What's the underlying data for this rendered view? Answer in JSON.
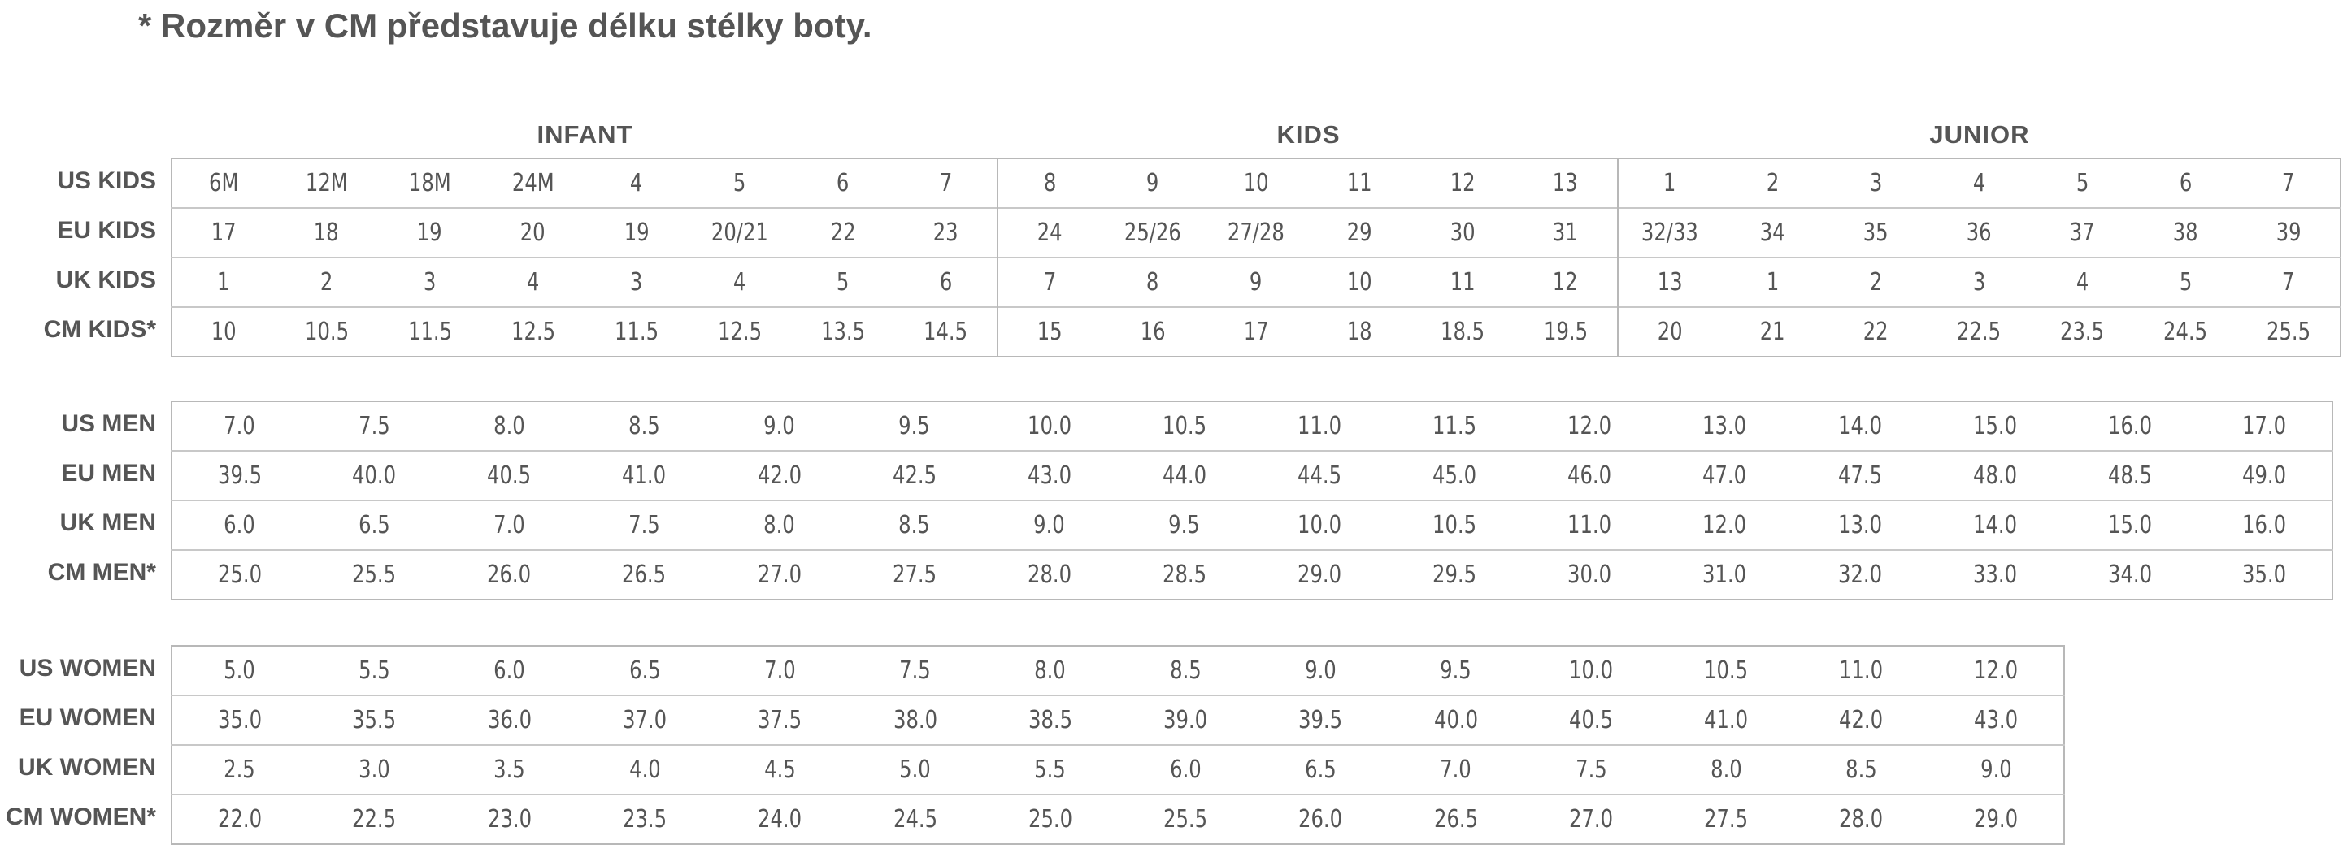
{
  "note": "* Rozměr v CM představuje délku stélky boty.",
  "kids": {
    "groups": [
      "INFANT",
      "KIDS",
      "JUNIOR"
    ],
    "rows": [
      {
        "label": "US KIDS",
        "values": [
          "6M",
          "12M",
          "18M",
          "24M",
          "4",
          "5",
          "6",
          "7",
          "8",
          "9",
          "10",
          "11",
          "12",
          "13",
          "1",
          "2",
          "3",
          "4",
          "5",
          "6",
          "7"
        ]
      },
      {
        "label": "EU KIDS",
        "values": [
          "17",
          "18",
          "19",
          "20",
          "19",
          "20/21",
          "22",
          "23",
          "24",
          "25/26",
          "27/28",
          "29",
          "30",
          "31",
          "32/33",
          "34",
          "35",
          "36",
          "37",
          "38",
          "39"
        ]
      },
      {
        "label": "UK KIDS",
        "values": [
          "1",
          "2",
          "3",
          "4",
          "3",
          "4",
          "5",
          "6",
          "7",
          "8",
          "9",
          "10",
          "11",
          "12",
          "13",
          "1",
          "2",
          "3",
          "4",
          "5",
          "7"
        ]
      },
      {
        "label": "CM KIDS*",
        "values": [
          "10",
          "10.5",
          "11.5",
          "12.5",
          "11.5",
          "12.5",
          "13.5",
          "14.5",
          "15",
          "16",
          "17",
          "18",
          "18.5",
          "19.5",
          "20",
          "21",
          "22",
          "22.5",
          "23.5",
          "24.5",
          "25.5"
        ]
      }
    ]
  },
  "men": {
    "rows": [
      {
        "label": "US MEN",
        "values": [
          "7.0",
          "7.5",
          "8.0",
          "8.5",
          "9.0",
          "9.5",
          "10.0",
          "10.5",
          "11.0",
          "11.5",
          "12.0",
          "13.0",
          "14.0",
          "15.0",
          "16.0",
          "17.0"
        ]
      },
      {
        "label": "EU MEN",
        "values": [
          "39.5",
          "40.0",
          "40.5",
          "41.0",
          "42.0",
          "42.5",
          "43.0",
          "44.0",
          "44.5",
          "45.0",
          "46.0",
          "47.0",
          "47.5",
          "48.0",
          "48.5",
          "49.0"
        ]
      },
      {
        "label": "UK MEN",
        "values": [
          "6.0",
          "6.5",
          "7.0",
          "7.5",
          "8.0",
          "8.5",
          "9.0",
          "9.5",
          "10.0",
          "10.5",
          "11.0",
          "12.0",
          "13.0",
          "14.0",
          "15.0",
          "16.0"
        ]
      },
      {
        "label": "CM MEN*",
        "values": [
          "25.0",
          "25.5",
          "26.0",
          "26.5",
          "27.0",
          "27.5",
          "28.0",
          "28.5",
          "29.0",
          "29.5",
          "30.0",
          "31.0",
          "32.0",
          "33.0",
          "34.0",
          "35.0"
        ]
      }
    ]
  },
  "women": {
    "rows": [
      {
        "label": "US WOMEN",
        "values": [
          "5.0",
          "5.5",
          "6.0",
          "6.5",
          "7.0",
          "7.5",
          "8.0",
          "8.5",
          "9.0",
          "9.5",
          "10.0",
          "10.5",
          "11.0",
          "12.0"
        ]
      },
      {
        "label": "EU  WOMEN",
        "values": [
          "35.0",
          "35.5",
          "36.0",
          "37.0",
          "37.5",
          "38.0",
          "38.5",
          "39.0",
          "39.5",
          "40.0",
          "40.5",
          "41.0",
          "42.0",
          "43.0"
        ]
      },
      {
        "label": "UK WOMEN",
        "values": [
          "2.5",
          "3.0",
          "3.5",
          "4.0",
          "4.5",
          "5.0",
          "5.5",
          "6.0",
          "6.5",
          "7.0",
          "7.5",
          "8.0",
          "8.5",
          "9.0"
        ]
      },
      {
        "label": "CM WOMEN*",
        "values": [
          "22.0",
          "22.5",
          "23.0",
          "23.5",
          "24.0",
          "24.5",
          "25.0",
          "25.5",
          "26.0",
          "26.5",
          "27.0",
          "27.5",
          "28.0",
          "29.0"
        ]
      }
    ]
  }
}
